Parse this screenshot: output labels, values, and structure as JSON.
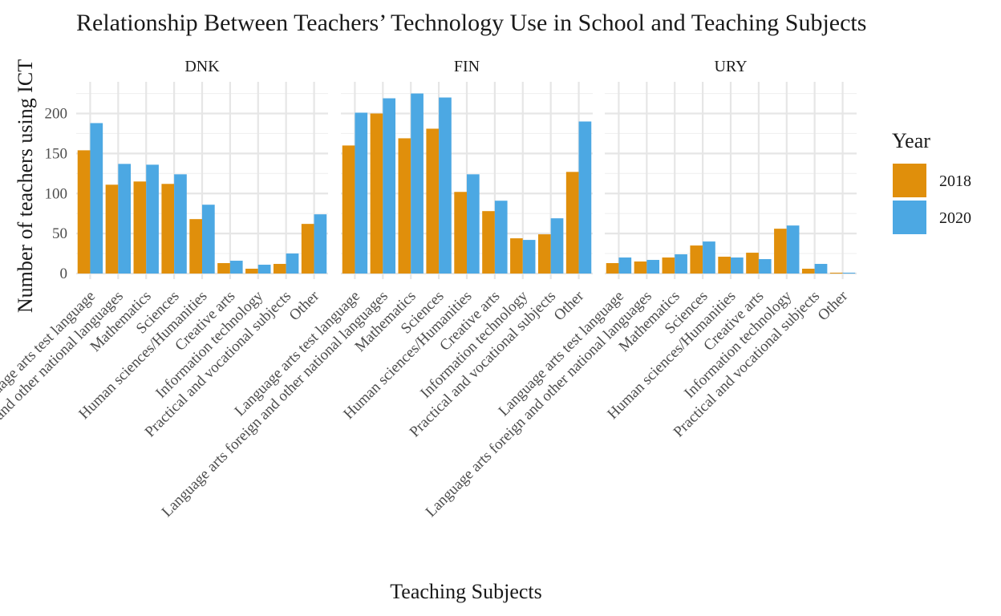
{
  "chart_data": {
    "type": "bar",
    "title": "Relationship Between Teachers’ Technology Use in School and Teaching Subjects",
    "xlabel": "Teaching Subjects",
    "ylabel": "Number of teachers using ICT",
    "ylim": [
      0,
      230
    ],
    "yticks": [
      0,
      50,
      100,
      150,
      200
    ],
    "grid": true,
    "legend": {
      "title": "Year",
      "position": "right"
    },
    "categories": [
      "Language arts test language",
      "Language arts foreign and other national languages",
      "Mathematics",
      "Sciences",
      "Human sciences/Humanities",
      "Creative arts",
      "Information technology",
      "Practical and vocational subjects",
      "Other"
    ],
    "series_names": [
      "2018",
      "2020"
    ],
    "series_colors": [
      "#E08F0B",
      "#4CA8E3"
    ],
    "facets": [
      {
        "name": "DNK",
        "series": [
          {
            "name": "2018",
            "values": [
              154,
              111,
              115,
              112,
              68,
              13,
              6,
              12,
              62
            ]
          },
          {
            "name": "2020",
            "values": [
              188,
              137,
              136,
              124,
              86,
              16,
              11,
              25,
              74
            ]
          }
        ]
      },
      {
        "name": "FIN",
        "series": [
          {
            "name": "2018",
            "values": [
              160,
              200,
              169,
              181,
              102,
              78,
              44,
              49,
              127
            ]
          },
          {
            "name": "2020",
            "values": [
              201,
              219,
              225,
              220,
              124,
              91,
              42,
              69,
              190
            ]
          }
        ]
      },
      {
        "name": "URY",
        "series": [
          {
            "name": "2018",
            "values": [
              13,
              15,
              20,
              35,
              21,
              26,
              56,
              6,
              1
            ]
          },
          {
            "name": "2020",
            "values": [
              20,
              17,
              24,
              40,
              20,
              18,
              60,
              12,
              1
            ]
          }
        ]
      }
    ]
  }
}
